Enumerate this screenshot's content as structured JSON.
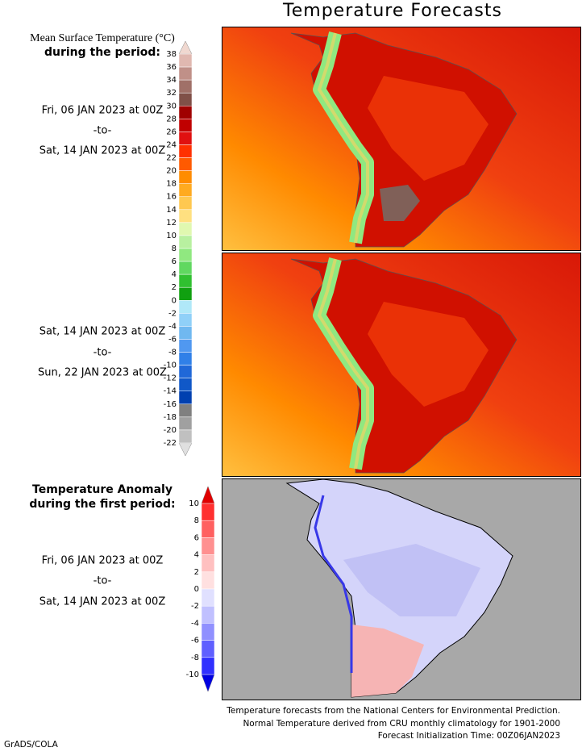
{
  "title": "Temperature Forecasts",
  "legend1": {
    "title": "Mean Surface Temperature (°C)",
    "subtitle": "during the period:",
    "labels": [
      "38",
      "36",
      "34",
      "32",
      "30",
      "28",
      "26",
      "24",
      "22",
      "20",
      "18",
      "16",
      "14",
      "12",
      "10",
      "8",
      "6",
      "4",
      "2",
      "0",
      "-2",
      "-4",
      "-6",
      "-8",
      "-10",
      "-12",
      "-14",
      "-16",
      "-18",
      "-20",
      "-22"
    ]
  },
  "period1": {
    "start": "Fri, 06 JAN 2023 at 00Z",
    "sep": "-to-",
    "end": "Sat, 14 JAN 2023 at 00Z"
  },
  "period2": {
    "start": "Sat, 14 JAN 2023 at 00Z",
    "sep": "-to-",
    "end": "Sun, 22 JAN 2023 at 00Z"
  },
  "legend2": {
    "title": "Temperature Anomaly",
    "subtitle": "during the first period:",
    "labels": [
      "10",
      "8",
      "6",
      "4",
      "2",
      "0",
      "-2",
      "-4",
      "-6",
      "-8",
      "-10"
    ]
  },
  "period3": {
    "start": "Fri, 06 JAN 2023 at 00Z",
    "sep": "-to-",
    "end": "Sat, 14 JAN 2023 at 00Z"
  },
  "footer": [
    "Temperature forecasts from the National Centers for Environmental Prediction.",
    "Normal Temperature derived from CRU monthly climatology for 1901-2000",
    "Forecast Initialization Time: 00Z06JAN2023"
  ],
  "credit": "GrADS/COLA"
}
